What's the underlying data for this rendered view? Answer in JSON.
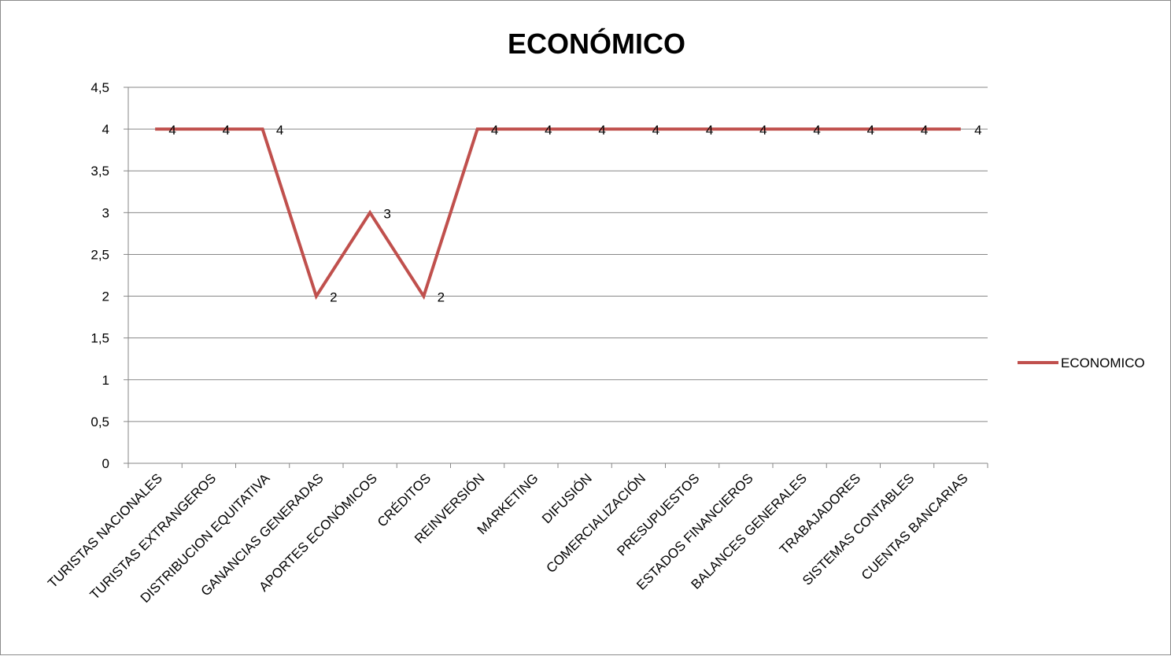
{
  "chart_data": {
    "type": "line",
    "title": "ECONÓMICO",
    "xlabel": "",
    "ylabel": "",
    "categories": [
      "TURISTAS NACIONALES",
      "TURISTAS EXTRANGEROS",
      "DISTRIBUCION EQUITATIVA",
      "GANANCIAS GENERADAS",
      "APORTES ECONÓMICOS",
      "CRÉDITOS",
      "REINVERSIÓN",
      "MARKETING",
      "DIFUSIÓN",
      "COMERCIALIZACIÓN",
      "PRESUPUESTOS",
      "ESTADOS FINANCIEROS",
      "BALANCES GENERALES",
      "TRABAJADORES",
      "SISTEMAS CONTABLES",
      "CUENTAS BANCARIAS"
    ],
    "series": [
      {
        "name": "ECONOMICO",
        "color": "#c0504d",
        "values": [
          4,
          4,
          4,
          2,
          3,
          2,
          4,
          4,
          4,
          4,
          4,
          4,
          4,
          4,
          4,
          4
        ],
        "data_labels": [
          "4",
          "4",
          "4",
          "2",
          "3",
          "2",
          "4",
          "4",
          "4",
          "4",
          "4",
          "4",
          "4",
          "4",
          "4",
          "4"
        ]
      }
    ],
    "ylim": [
      0,
      4.5
    ],
    "yticks": [
      0,
      0.5,
      1,
      1.5,
      2,
      2.5,
      3,
      3.5,
      4,
      4.5
    ],
    "ytick_labels": [
      "0",
      "0,5",
      "1",
      "1,5",
      "2",
      "2,5",
      "3",
      "3,5",
      "4",
      "4,5"
    ],
    "grid": true,
    "legend_position": "right"
  }
}
